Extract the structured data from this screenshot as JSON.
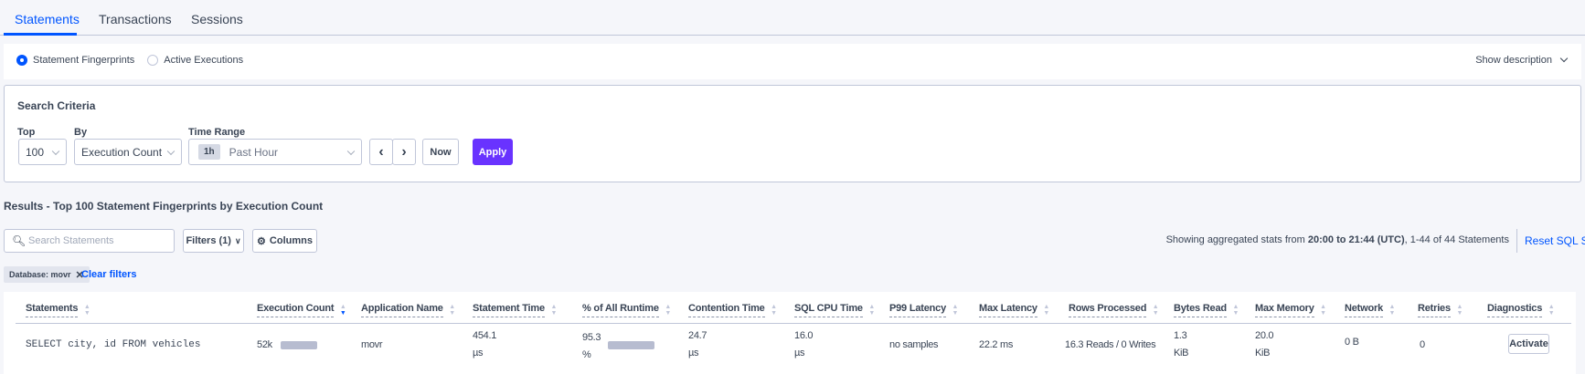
{
  "tabs": [
    {
      "label": "Statements",
      "active": true
    },
    {
      "label": "Transactions"
    },
    {
      "label": "Sessions"
    }
  ],
  "view": {
    "options": [
      "Statement Fingerprints",
      "Active Executions"
    ],
    "selected": "Statement Fingerprints",
    "show_description": "Show description"
  },
  "search_criteria": {
    "title": "Search Criteria",
    "top": {
      "label": "Top",
      "value": "100"
    },
    "by": {
      "label": "By",
      "value": "Execution Count"
    },
    "time_range": {
      "label": "Time Range",
      "badge": "1h",
      "value": "Past Hour"
    },
    "now_label": "Now",
    "apply_label": "Apply"
  },
  "results": {
    "title": "Results - Top 100 Statement Fingerprints by Execution Count",
    "search_placeholder": "Search Statements",
    "filters_label": "Filters (1)",
    "columns_label": "Columns",
    "stats_prefix": "Showing aggregated stats from ",
    "stats_range": "20:00 to 21:44 (UTC)",
    "stats_suffix": ", 1-44 of 44 Statements",
    "reset_label": "Reset SQL Stats",
    "chip": "Database: movr",
    "clear_filters": "Clear filters"
  },
  "table": {
    "columns": [
      "Statements",
      "Execution Count",
      "Application Name",
      "Statement Time",
      "% of All Runtime",
      "Contention Time",
      "SQL CPU Time",
      "P99 Latency",
      "Max Latency",
      "Rows Processed",
      "Bytes Read",
      "Max Memory",
      "Network",
      "Retries",
      "Diagnostics"
    ],
    "sorted_column": "Execution Count",
    "rows": [
      {
        "statement": "SELECT city, id FROM vehicles",
        "execution_count": "52k",
        "execution_bar_fraction": 1.0,
        "application": "movr",
        "statement_time": "454.1",
        "statement_time_unit": "µs",
        "runtime_pct": "95.3",
        "runtime_pct_unit": "%",
        "runtime_bar_fraction": 0.953,
        "contention": "24.7",
        "contention_unit": "µs",
        "cpu": "16.0",
        "cpu_unit": "µs",
        "p99": "no samples",
        "max_latency": "22.2 ms",
        "rows_processed": "16.3 Reads / 0 Writes",
        "bytes_read": "1.3",
        "bytes_read_unit": "KiB",
        "max_memory": "20.0",
        "max_memory_unit": "KiB",
        "network": "0 B",
        "retries": "0",
        "diagnostics": "Activate"
      }
    ]
  },
  "colors": {
    "accent": "#0055ff",
    "apply": "#6933ff",
    "bar": "#b7bcd0"
  }
}
